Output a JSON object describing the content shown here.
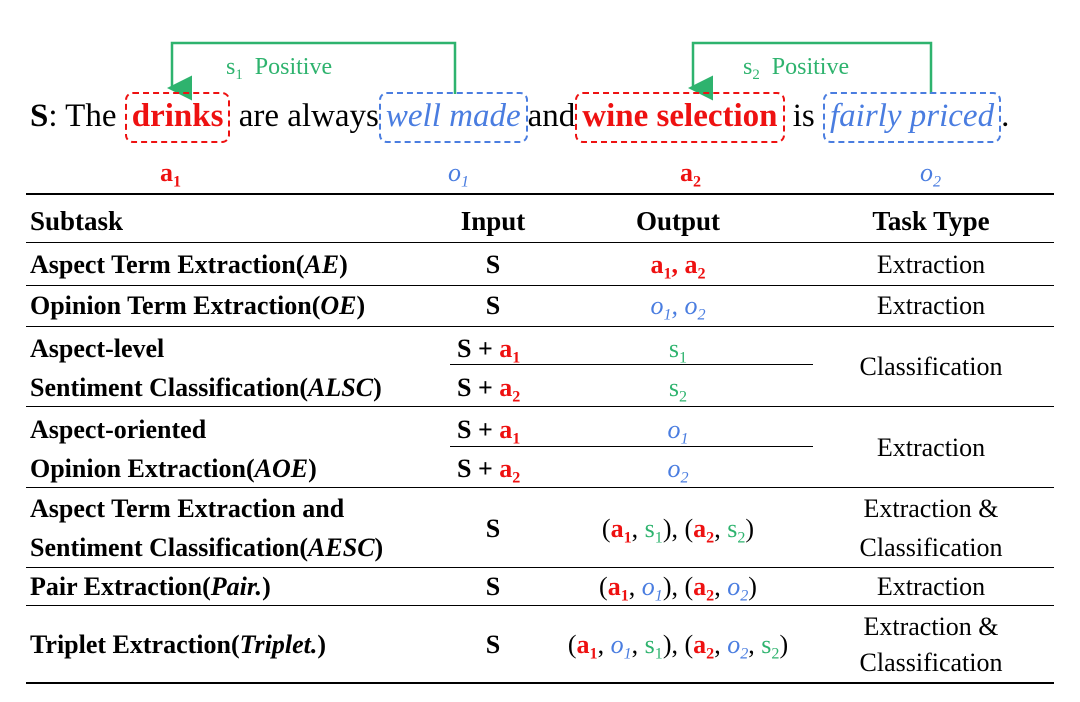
{
  "sentence": {
    "label": "S",
    "colon": ": The",
    "aspect1": "drinks",
    "mid1": "are always",
    "opinion1": "well made",
    "mid2": "and",
    "aspect2": "wine selection",
    "mid3": "is",
    "opinion2": "fairly priced",
    "end": ".",
    "tags": {
      "a1": "a",
      "a1_sub": "1",
      "o1": "o",
      "o1_sub": "1",
      "a2": "a",
      "a2_sub": "2",
      "o2": "o",
      "o2_sub": "2"
    },
    "relations": [
      {
        "s": "s",
        "sub": "1",
        "label": "Positive"
      },
      {
        "s": "s",
        "sub": "2",
        "label": "Positive"
      }
    ]
  },
  "table": {
    "headers": {
      "subtask": "Subtask",
      "input": "Input",
      "output": "Output",
      "task_type": "Task Type"
    },
    "rows": {
      "ae": {
        "name": "Aspect Term Extraction(",
        "abbr": "AE",
        "close": ")",
        "input": "S",
        "type": "Extraction"
      },
      "oe": {
        "name": "Opinion Term Extraction(",
        "abbr": "OE",
        "close": ")",
        "input": "S",
        "type": "Extraction"
      },
      "alsc": {
        "line1": "Aspect-level",
        "name": "Sentiment Classification(",
        "abbr": "ALSC",
        "close": ")",
        "input_prefix": "S + ",
        "type": "Classification"
      },
      "aoe": {
        "line1": "Aspect-oriented",
        "name": "Opinion Extraction(",
        "abbr": "AOE",
        "close": ")",
        "input_prefix": "S + ",
        "type": "Extraction"
      },
      "aesc": {
        "line1": "Aspect Term Extraction and",
        "name": "Sentiment Classification(",
        "abbr": "AESC",
        "close": ")",
        "input": "S",
        "type1": "Extraction &",
        "type2": "Classification"
      },
      "pair": {
        "name": "Pair Extraction(",
        "abbr": "Pair.",
        "close": ")",
        "input": "S",
        "type": "Extraction"
      },
      "triplet": {
        "name": "Triplet Extraction(",
        "abbr": "Triplet.",
        "close": ")",
        "input": "S",
        "type1": "Extraction &",
        "type2": "Classification"
      }
    }
  },
  "colors": {
    "aspect": "#ee1111",
    "opinion": "#4a7de0",
    "sentiment": "#2eb36e"
  }
}
